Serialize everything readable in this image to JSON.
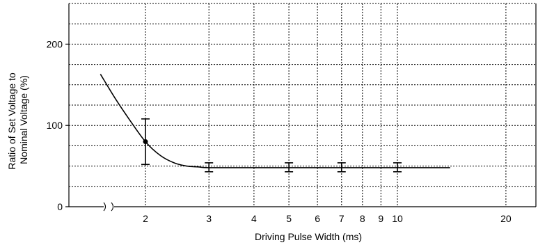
{
  "chart_data": {
    "type": "line",
    "title": "",
    "xlabel": "Driving Pulse Width (ms)",
    "ylabel_lines": [
      "Ratio of Set Voltage to",
      "Nominal Voltage (%)"
    ],
    "x_scale": "log",
    "x_axis_break": true,
    "xlim": [
      1.35,
      22
    ],
    "ylim": [
      0,
      250
    ],
    "x_ticks": [
      2,
      3,
      4,
      5,
      6,
      7,
      8,
      9,
      10,
      20
    ],
    "x_tick_labels": [
      "2",
      "3",
      "4",
      "5",
      "6",
      "7",
      "8",
      "9",
      "10",
      "20"
    ],
    "y_ticks": [
      0,
      100,
      200
    ],
    "y_tick_labels": [
      "0",
      "100",
      "200"
    ],
    "y_gridlines": [
      25,
      50,
      75,
      100,
      125,
      150,
      175,
      200,
      225,
      250
    ],
    "grid": true,
    "series": [
      {
        "x": [
          1.5,
          1.65,
          1.8,
          2.0,
          2.2,
          2.4,
          2.6,
          2.8,
          3.0,
          4.0,
          5.0,
          7.0,
          10.0,
          14.0
        ],
        "y": [
          163,
          133,
          108,
          80,
          63,
          54,
          50,
          49,
          48,
          48,
          48,
          48,
          48,
          48
        ]
      }
    ],
    "marker_points": [
      {
        "x": 2,
        "y": 80
      }
    ],
    "error_bars": [
      {
        "x": 2,
        "low": 52,
        "high": 108
      },
      {
        "x": 3,
        "low": 43,
        "high": 54
      },
      {
        "x": 5,
        "low": 43,
        "high": 54
      },
      {
        "x": 7,
        "low": 43,
        "high": 54
      },
      {
        "x": 10,
        "low": 43,
        "high": 54
      }
    ],
    "colors": {
      "line": "#000000",
      "grid": "#000000",
      "background": "#ffffff"
    }
  }
}
